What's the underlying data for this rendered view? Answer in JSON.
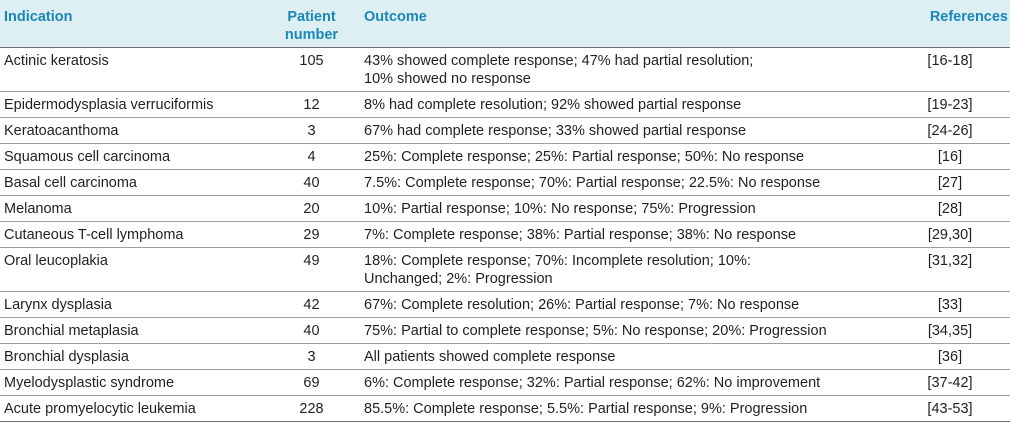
{
  "table": {
    "headers": {
      "indication": "Indication",
      "patient_number": "Patient\nnumber",
      "outcome": "Outcome",
      "references": "References"
    },
    "rows": [
      {
        "indication": "Actinic keratosis",
        "patients": "105",
        "outcome": "43% showed complete response; 47% had partial resolution;\n10% showed no response",
        "references": "[16-18]"
      },
      {
        "indication": "Epidermodysplasia verruciformis",
        "patients": "12",
        "outcome": "8% had complete resolution; 92% showed partial response",
        "references": "[19-23]"
      },
      {
        "indication": "Keratoacanthoma",
        "patients": "3",
        "outcome": "67% had complete response; 33% showed partial response",
        "references": "[24-26]"
      },
      {
        "indication": "Squamous cell carcinoma",
        "patients": "4",
        "outcome": "25%: Complete response; 25%: Partial response; 50%: No response",
        "references": "[16]"
      },
      {
        "indication": "Basal cell carcinoma",
        "patients": "40",
        "outcome": "7.5%: Complete response; 70%: Partial response; 22.5%: No response",
        "references": "[27]"
      },
      {
        "indication": "Melanoma",
        "patients": "20",
        "outcome": "10%: Partial response; 10%: No response; 75%: Progression",
        "references": "[28]"
      },
      {
        "indication": "Cutaneous T-cell lymphoma",
        "patients": "29",
        "outcome": "7%: Complete response; 38%: Partial response; 38%: No response",
        "references": "[29,30]"
      },
      {
        "indication": "Oral leucoplakia",
        "patients": "49",
        "outcome": "18%: Complete response; 70%: Incomplete resolution; 10%:\nUnchanged; 2%: Progression",
        "references": "[31,32]"
      },
      {
        "indication": "Larynx dysplasia",
        "patients": "42",
        "outcome": "67%: Complete resolution; 26%: Partial response; 7%: No response",
        "references": "[33]"
      },
      {
        "indication": "Bronchial metaplasia",
        "patients": "40",
        "outcome": "75%: Partial to complete response; 5%: No response; 20%: Progression",
        "references": "[34,35]"
      },
      {
        "indication": "Bronchial dysplasia",
        "patients": "3",
        "outcome": "All patients showed complete response",
        "references": "[36]"
      },
      {
        "indication": "Myelodysplastic syndrome",
        "patients": "69",
        "outcome": "6%: Complete response; 32%: Partial response; 62%: No improvement",
        "references": "[37-42]"
      },
      {
        "indication": "Acute promyelocytic leukemia",
        "patients": "228",
        "outcome": "85.5%: Complete response; 5.5%: Partial response; 9%: Progression",
        "references": "[43-53]"
      }
    ]
  }
}
